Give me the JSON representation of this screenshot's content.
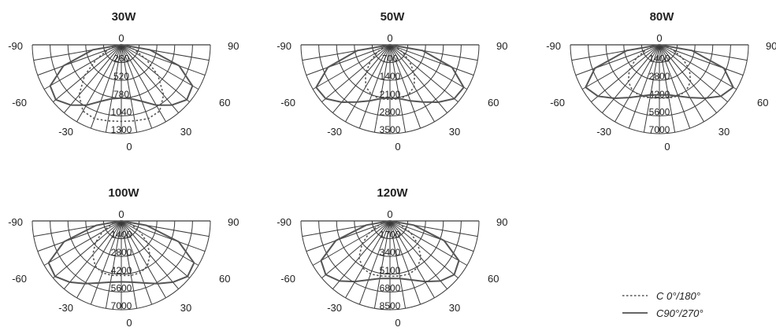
{
  "chart_data": [
    {
      "type": "polar",
      "title": "30W",
      "angle_labels": [
        "-90",
        "-60",
        "-30",
        "0",
        "30",
        "60",
        "90"
      ],
      "radial_labels": [
        "260",
        "520",
        "780",
        "1040",
        "1300"
      ],
      "rmax": 1300,
      "series": [
        {
          "name": "C 0°/180°",
          "style": "dashed",
          "points": [
            [
              0,
              1120
            ],
            [
              10,
              1130
            ],
            [
              20,
              1150
            ],
            [
              30,
              1120
            ],
            [
              40,
              960
            ],
            [
              50,
              700
            ],
            [
              60,
              420
            ],
            [
              70,
              200
            ],
            [
              80,
              70
            ],
            [
              90,
              0
            ]
          ]
        },
        {
          "name": "C90°/270°",
          "style": "solid",
          "points": [
            [
              0,
              780
            ],
            [
              10,
              800
            ],
            [
              20,
              880
            ],
            [
              30,
              1020
            ],
            [
              40,
              1150
            ],
            [
              50,
              1250
            ],
            [
              60,
              1200
            ],
            [
              70,
              900
            ],
            [
              80,
              420
            ],
            [
              90,
              0
            ]
          ]
        }
      ]
    },
    {
      "type": "polar",
      "title": "50W",
      "angle_labels": [
        "-90",
        "-60",
        "-30",
        "0",
        "30",
        "60",
        "90"
      ],
      "radial_labels": [
        "700",
        "1400",
        "2100",
        "2800",
        "3500"
      ],
      "rmax": 3500,
      "series": [
        {
          "name": "C 0°/180°",
          "style": "dashed",
          "points": [
            [
              0,
              2150
            ],
            [
              10,
              2160
            ],
            [
              20,
              2100
            ],
            [
              30,
              1900
            ],
            [
              40,
              1500
            ],
            [
              50,
              1000
            ],
            [
              60,
              560
            ],
            [
              70,
              240
            ],
            [
              80,
              70
            ],
            [
              90,
              0
            ]
          ]
        },
        {
          "name": "C90°/270°",
          "style": "solid",
          "points": [
            [
              0,
              2100
            ],
            [
              10,
              2150
            ],
            [
              20,
              2350
            ],
            [
              30,
              2600
            ],
            [
              40,
              2950
            ],
            [
              50,
              3300
            ],
            [
              60,
              3350
            ],
            [
              70,
              2600
            ],
            [
              80,
              1300
            ],
            [
              90,
              0
            ]
          ]
        }
      ]
    },
    {
      "type": "polar",
      "title": "80W",
      "angle_labels": [
        "-90",
        "-60",
        "-30",
        "0",
        "30",
        "60",
        "90"
      ],
      "radial_labels": [
        "1400",
        "2800",
        "4200",
        "5600",
        "7000"
      ],
      "rmax": 7000,
      "series": [
        {
          "name": "C 0°/180°",
          "style": "dashed",
          "points": [
            [
              0,
              4200
            ],
            [
              10,
              4250
            ],
            [
              20,
              4300
            ],
            [
              30,
              4200
            ],
            [
              40,
              3800
            ],
            [
              50,
              3100
            ],
            [
              60,
              2100
            ],
            [
              70,
              1100
            ],
            [
              80,
              350
            ],
            [
              90,
              0
            ]
          ]
        },
        {
          "name": "C90°/270°",
          "style": "solid",
          "points": [
            [
              0,
              3950
            ],
            [
              10,
              4000
            ],
            [
              20,
              4300
            ],
            [
              30,
              4800
            ],
            [
              40,
              5500
            ],
            [
              50,
              6300
            ],
            [
              60,
              6700
            ],
            [
              70,
              5400
            ],
            [
              80,
              2600
            ],
            [
              90,
              0
            ]
          ]
        }
      ]
    },
    {
      "type": "polar",
      "title": "100W",
      "angle_labels": [
        "-90",
        "-60",
        "-30",
        "0",
        "30",
        "60",
        "90"
      ],
      "radial_labels": [
        "1400",
        "2800",
        "4200",
        "5600",
        "7000"
      ],
      "rmax": 7000,
      "series": [
        {
          "name": "C 0°/180°",
          "style": "dashed",
          "points": [
            [
              0,
              4300
            ],
            [
              10,
              4350
            ],
            [
              20,
              4350
            ],
            [
              30,
              4100
            ],
            [
              40,
              3500
            ],
            [
              50,
              2650
            ],
            [
              60,
              1700
            ],
            [
              70,
              850
            ],
            [
              80,
              260
            ],
            [
              90,
              0
            ]
          ]
        },
        {
          "name": "C90°/270°",
          "style": "solid",
          "points": [
            [
              0,
              4800
            ],
            [
              10,
              4900
            ],
            [
              20,
              5200
            ],
            [
              30,
              5700
            ],
            [
              40,
              6300
            ],
            [
              50,
              6800
            ],
            [
              60,
              6600
            ],
            [
              70,
              4800
            ],
            [
              80,
              2000
            ],
            [
              90,
              0
            ]
          ]
        }
      ]
    },
    {
      "type": "polar",
      "title": "120W",
      "angle_labels": [
        "-90",
        "-60",
        "-30",
        "0",
        "30",
        "60",
        "90"
      ],
      "radial_labels": [
        "1700",
        "3400",
        "5100",
        "6800",
        "8500"
      ],
      "rmax": 8500,
      "series": [
        {
          "name": "C 0°/180°",
          "style": "dashed",
          "points": [
            [
              0,
              5300
            ],
            [
              10,
              5350
            ],
            [
              20,
              5400
            ],
            [
              30,
              5200
            ],
            [
              40,
              4600
            ],
            [
              50,
              3500
            ],
            [
              60,
              2300
            ],
            [
              70,
              1100
            ],
            [
              80,
              330
            ],
            [
              90,
              0
            ]
          ]
        },
        {
          "name": "C90°/270°",
          "style": "solid",
          "points": [
            [
              0,
              5500
            ],
            [
              10,
              5600
            ],
            [
              20,
              6000
            ],
            [
              30,
              6700
            ],
            [
              40,
              7500
            ],
            [
              50,
              8000
            ],
            [
              60,
              7600
            ],
            [
              70,
              5500
            ],
            [
              80,
              2300
            ],
            [
              90,
              0
            ]
          ]
        }
      ]
    }
  ],
  "legend": [
    {
      "label": "C 0°/180°",
      "style": "dashed"
    },
    {
      "label": "C90°/270°",
      "style": "solid"
    }
  ],
  "colors": {
    "grid": "#3a3a3a",
    "curve": "#555555",
    "text": "#222222",
    "background": "#ffffff"
  }
}
